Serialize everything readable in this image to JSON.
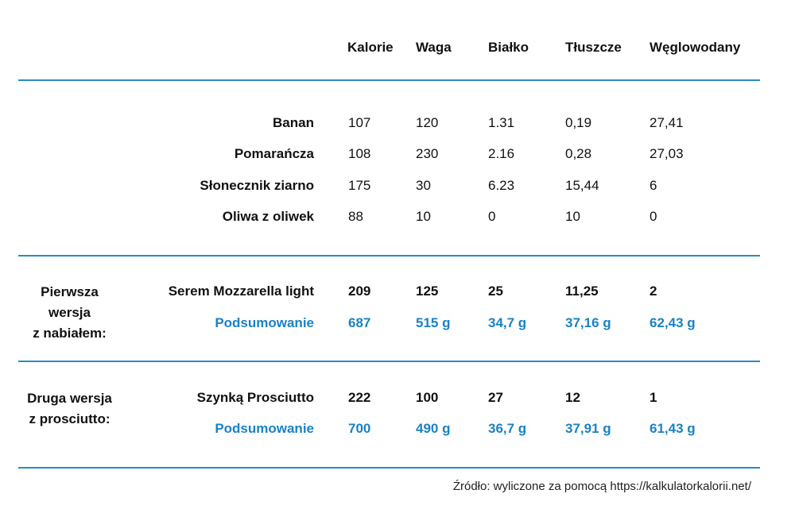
{
  "columns": [
    "Kalorie",
    "Waga",
    "Białko",
    "Tłuszcze",
    "Węglowodany"
  ],
  "ingredients": [
    {
      "name": "Banan",
      "values": [
        "107",
        "120",
        "1.31",
        "0,19",
        "27,41"
      ]
    },
    {
      "name": "Pomarańcza",
      "values": [
        "108",
        "230",
        "2.16",
        "0,28",
        "27,03"
      ]
    },
    {
      "name": "Słonecznik ziarno",
      "values": [
        "175",
        "30",
        "6.23",
        "15,44",
        "6"
      ]
    },
    {
      "name": "Oliwa z oliwek",
      "values": [
        "88",
        "10",
        "0",
        "10",
        "0"
      ]
    }
  ],
  "version1": {
    "group_label": [
      "Pierwsza",
      "wersja",
      "z nabiałem:"
    ],
    "item": {
      "name": "Serem Mozzarella light",
      "values": [
        "209",
        "125",
        "25",
        "11,25",
        "2"
      ]
    },
    "summary": {
      "name": "Podsumowanie",
      "values": [
        "687",
        "515 g",
        "34,7 g",
        "37,16 g",
        "62,43 g"
      ]
    }
  },
  "version2": {
    "group_label": [
      "Druga wersja",
      "z prosciutto:"
    ],
    "item": {
      "name": "Szynką Prosciutto",
      "values": [
        "222",
        "100",
        "27",
        "12",
        "1"
      ]
    },
    "summary": {
      "name": "Podsumowanie",
      "values": [
        "700",
        "490 g",
        "36,7 g",
        "37,91 g",
        "61,43 g"
      ]
    }
  },
  "source": "Źródło: wyliczone za pomocą https://kalkulatorkalorii.net/",
  "colors": {
    "accent": "#1a82c4",
    "rule": "#2a8bc4",
    "text": "#111111"
  }
}
